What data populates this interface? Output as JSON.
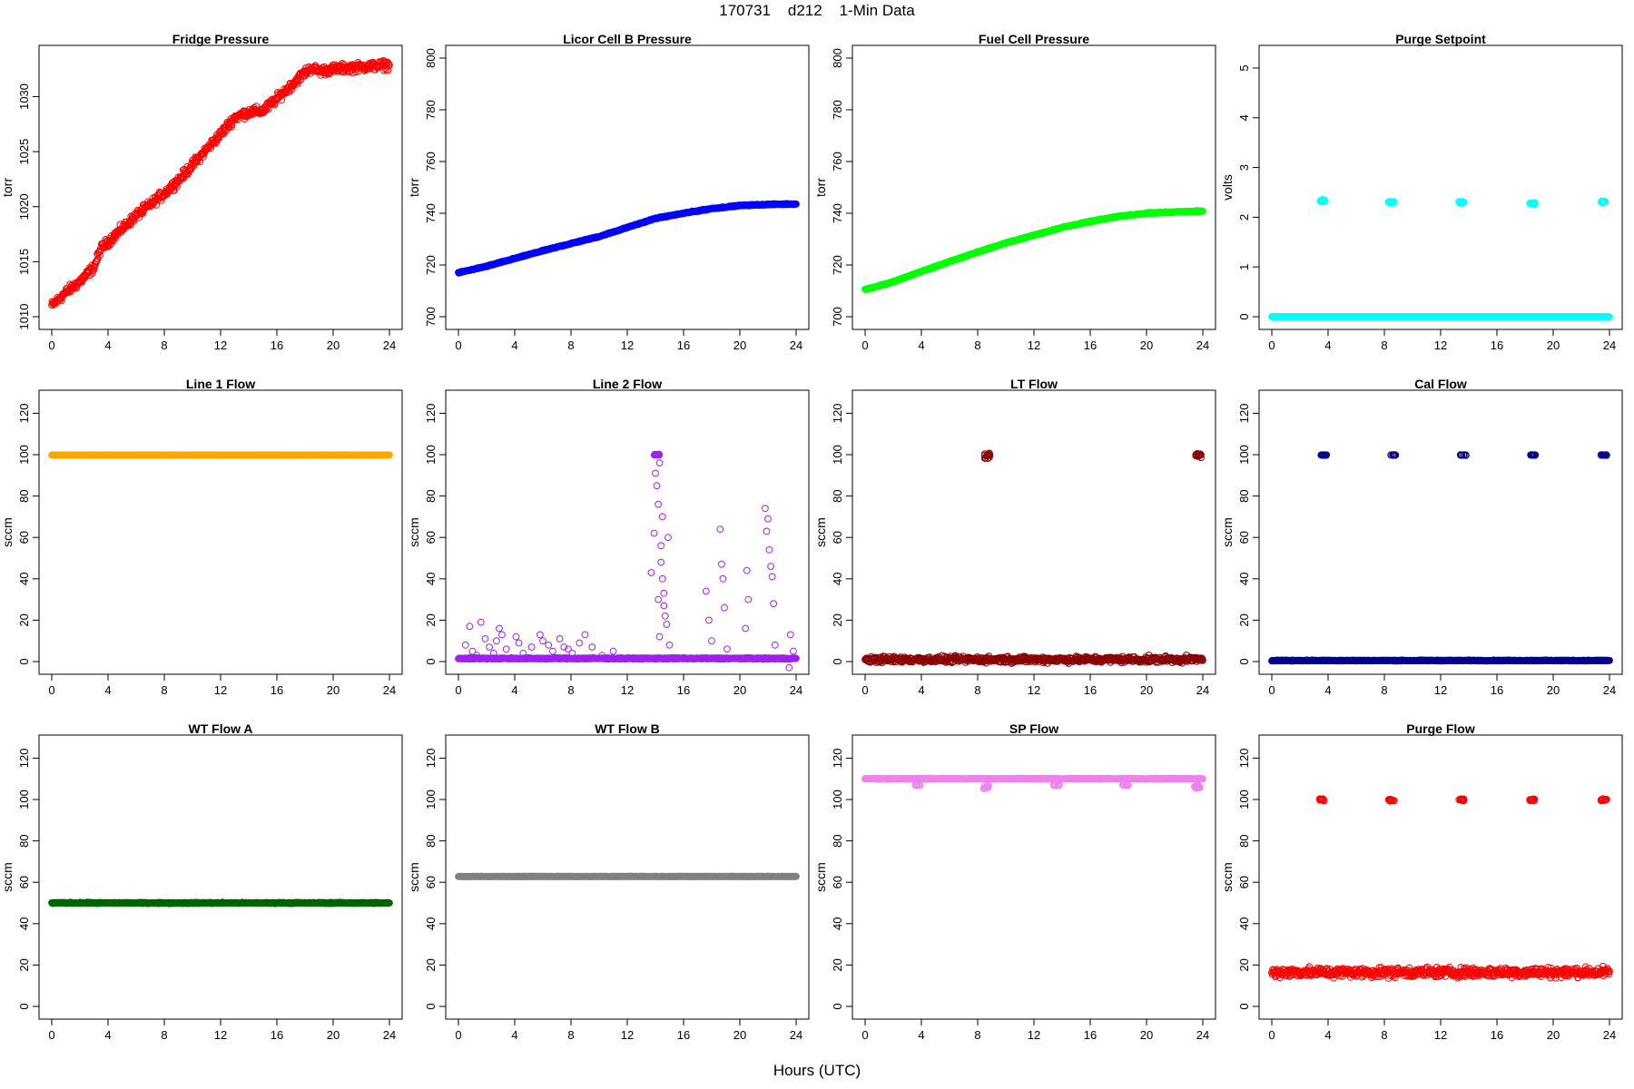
{
  "figure": {
    "title": "170731    d212    1-Min Data",
    "xlabel": "Hours (UTC)"
  },
  "chart_data": [
    {
      "type": "scatter",
      "title": "Fridge Pressure",
      "ylabel": "torr",
      "xlim": [
        0,
        24
      ],
      "ylim": [
        1010,
        1033.5
      ],
      "xticks": [
        0,
        4,
        8,
        12,
        16,
        20,
        24
      ],
      "yticks": [
        1010,
        1015,
        1020,
        1025,
        1030
      ],
      "color": "#ff0000",
      "marker": "open-circle",
      "series": [
        {
          "x": [
            0,
            1,
            2,
            3,
            3.5,
            4,
            5,
            6,
            7,
            8,
            9,
            10,
            11,
            12,
            13,
            14,
            15,
            16,
            17,
            18,
            18.5,
            19,
            20,
            21,
            22,
            23,
            24
          ],
          "values": [
            1011,
            1012.2,
            1013.2,
            1014.5,
            1016.2,
            1016.8,
            1018,
            1019.2,
            1020.2,
            1021.2,
            1022.4,
            1023.8,
            1025.2,
            1026.6,
            1028.1,
            1028.6,
            1028.7,
            1029.8,
            1031.0,
            1032.2,
            1032.6,
            1032.3,
            1032.5,
            1032.6,
            1032.7,
            1032.8,
            1032.9
          ],
          "spread": 0.6
        }
      ]
    },
    {
      "type": "scatter",
      "title": "Licor Cell B Pressure",
      "ylabel": "torr",
      "xlim": [
        0,
        24
      ],
      "ylim": [
        700,
        800
      ],
      "xticks": [
        0,
        4,
        8,
        12,
        16,
        20,
        24
      ],
      "yticks": [
        700,
        720,
        740,
        760,
        780,
        800
      ],
      "color": "#0000ff",
      "marker": "filled-circle",
      "series": [
        {
          "x": [
            0,
            2,
            4,
            6,
            8,
            10,
            12,
            14,
            16,
            18,
            20,
            22,
            24
          ],
          "values": [
            717,
            719.5,
            722.5,
            725.5,
            728.3,
            731,
            734.5,
            738,
            740,
            741.8,
            743,
            743.4,
            743.6
          ],
          "spread": 0.3
        }
      ]
    },
    {
      "type": "scatter",
      "title": "Fuel Cell Pressure",
      "ylabel": "torr",
      "xlim": [
        0,
        24
      ],
      "ylim": [
        700,
        800
      ],
      "xticks": [
        0,
        4,
        8,
        12,
        16,
        20,
        24
      ],
      "yticks": [
        700,
        720,
        740,
        760,
        780,
        800
      ],
      "color": "#00ff00",
      "marker": "filled-circle",
      "series": [
        {
          "x": [
            0,
            2,
            4,
            6,
            8,
            10,
            12,
            14,
            16,
            18,
            20,
            22,
            24
          ],
          "values": [
            710.5,
            713.5,
            717.5,
            721.3,
            725,
            728.5,
            731.5,
            734.5,
            736.8,
            738.8,
            740,
            740.5,
            740.8
          ],
          "spread": 0.3
        }
      ]
    },
    {
      "type": "scatter",
      "title": "Purge Setpoint",
      "ylabel": "volts",
      "xlim": [
        0,
        24
      ],
      "ylim": [
        0,
        5.2
      ],
      "xticks": [
        0,
        4,
        8,
        12,
        16,
        20,
        24
      ],
      "yticks": [
        0,
        1,
        2,
        3,
        4,
        5
      ],
      "color": "#00ffff",
      "marker": "open-circle",
      "baseline": {
        "value": 0,
        "spread": 0
      },
      "clusters": [
        {
          "x": 3.6,
          "y": 2.33,
          "spread": 0.04
        },
        {
          "x": 8.5,
          "y": 2.3,
          "spread": 0.03
        },
        {
          "x": 13.5,
          "y": 2.3,
          "spread": 0.04
        },
        {
          "x": 18.5,
          "y": 2.28,
          "spread": 0.03
        },
        {
          "x": 23.5,
          "y": 2.31,
          "spread": 0.04
        }
      ]
    },
    {
      "type": "scatter",
      "title": "Line 1 Flow",
      "ylabel": "sccm",
      "xlim": [
        0,
        24
      ],
      "ylim": [
        0,
        125
      ],
      "xticks": [
        0,
        4,
        8,
        12,
        16,
        20,
        24
      ],
      "yticks": [
        0,
        20,
        40,
        60,
        80,
        100,
        120
      ],
      "color": "#ffa500",
      "marker": "filled-circle",
      "baseline": {
        "value": 99.8,
        "spread": 0.1
      }
    },
    {
      "type": "scatter",
      "title": "Line 2 Flow",
      "ylabel": "sccm",
      "xlim": [
        0,
        24
      ],
      "ylim": [
        0,
        125
      ],
      "xticks": [
        0,
        4,
        8,
        12,
        16,
        20,
        24
      ],
      "yticks": [
        0,
        20,
        40,
        60,
        80,
        100,
        120
      ],
      "color": "#a020f0",
      "marker": "open-circle",
      "baseline": {
        "value": 1.5,
        "spread": 0.5
      },
      "clusters": [
        {
          "x": 14.1,
          "y": 100,
          "spread": 0.3
        }
      ],
      "points": [
        [
          0.5,
          8
        ],
        [
          0.8,
          17
        ],
        [
          1.0,
          5
        ],
        [
          1.3,
          3
        ],
        [
          1.6,
          19
        ],
        [
          1.9,
          11
        ],
        [
          2.2,
          7
        ],
        [
          2.5,
          4
        ],
        [
          2.7,
          10
        ],
        [
          2.9,
          16
        ],
        [
          3.1,
          13
        ],
        [
          3.4,
          6
        ],
        [
          4.1,
          12
        ],
        [
          4.3,
          9
        ],
        [
          4.6,
          4
        ],
        [
          5.2,
          7
        ],
        [
          5.8,
          13
        ],
        [
          6.0,
          10
        ],
        [
          6.4,
          8
        ],
        [
          6.7,
          5
        ],
        [
          7.2,
          11
        ],
        [
          7.5,
          7
        ],
        [
          7.8,
          6
        ],
        [
          8.1,
          4
        ],
        [
          8.6,
          9
        ],
        [
          9.0,
          13
        ],
        [
          9.5,
          7
        ],
        [
          10.2,
          3
        ],
        [
          11.0,
          5
        ],
        [
          13.7,
          43
        ],
        [
          13.9,
          62
        ],
        [
          14.0,
          91
        ],
        [
          14.1,
          85
        ],
        [
          14.2,
          76
        ],
        [
          14.3,
          96
        ],
        [
          14.4,
          56
        ],
        [
          14.5,
          40
        ],
        [
          14.6,
          33
        ],
        [
          14.7,
          22
        ],
        [
          14.8,
          18
        ],
        [
          14.9,
          60
        ],
        [
          15.0,
          8
        ],
        [
          14.5,
          70
        ],
        [
          14.2,
          30
        ],
        [
          14.4,
          48
        ],
        [
          14.6,
          27
        ],
        [
          14.3,
          12
        ],
        [
          17.6,
          34
        ],
        [
          17.8,
          20
        ],
        [
          18.0,
          10
        ],
        [
          18.6,
          64
        ],
        [
          18.7,
          47
        ],
        [
          18.8,
          40
        ],
        [
          18.9,
          26
        ],
        [
          19.1,
          6
        ],
        [
          20.4,
          16
        ],
        [
          20.5,
          44
        ],
        [
          20.6,
          30
        ],
        [
          21.8,
          74
        ],
        [
          21.9,
          63
        ],
        [
          22.0,
          69
        ],
        [
          22.1,
          54
        ],
        [
          22.2,
          46
        ],
        [
          22.3,
          41
        ],
        [
          22.4,
          28
        ],
        [
          22.5,
          8
        ],
        [
          23.6,
          13
        ],
        [
          23.8,
          5
        ],
        [
          23.5,
          -3
        ]
      ]
    },
    {
      "type": "scatter",
      "title": "LT Flow",
      "ylabel": "sccm",
      "xlim": [
        0,
        24
      ],
      "ylim": [
        0,
        125
      ],
      "xticks": [
        0,
        4,
        8,
        12,
        16,
        20,
        24
      ],
      "yticks": [
        0,
        20,
        40,
        60,
        80,
        100,
        120
      ],
      "color": "#8b0000",
      "marker": "open-circle",
      "baseline": {
        "value": 1,
        "spread": 2.2
      },
      "clusters": [
        {
          "x": 8.7,
          "y": 99.5,
          "spread": 2
        },
        {
          "x": 23.7,
          "y": 99.5,
          "spread": 2
        }
      ]
    },
    {
      "type": "scatter",
      "title": "Cal Flow",
      "ylabel": "sccm",
      "xlim": [
        0,
        24
      ],
      "ylim": [
        0,
        125
      ],
      "xticks": [
        0,
        4,
        8,
        12,
        16,
        20,
        24
      ],
      "yticks": [
        0,
        20,
        40,
        60,
        80,
        100,
        120
      ],
      "color": "#00008b",
      "marker": "open-circle",
      "baseline": {
        "value": 0.5,
        "spread": 0.3
      },
      "clusters": [
        {
          "x": 3.7,
          "y": 99.8,
          "spread": 0.2
        },
        {
          "x": 8.6,
          "y": 99.8,
          "spread": 0.2
        },
        {
          "x": 13.6,
          "y": 99.8,
          "spread": 0.2
        },
        {
          "x": 18.6,
          "y": 99.8,
          "spread": 0.2
        },
        {
          "x": 23.6,
          "y": 99.8,
          "spread": 0.2
        }
      ]
    },
    {
      "type": "scatter",
      "title": "WT Flow A",
      "ylabel": "sccm",
      "xlim": [
        0,
        24
      ],
      "ylim": [
        0,
        125
      ],
      "xticks": [
        0,
        4,
        8,
        12,
        16,
        20,
        24
      ],
      "yticks": [
        0,
        20,
        40,
        60,
        80,
        100,
        120
      ],
      "color": "#006400",
      "marker": "filled-circle",
      "baseline": {
        "value": 50,
        "spread": 0.4
      }
    },
    {
      "type": "scatter",
      "title": "WT Flow B",
      "ylabel": "sccm",
      "xlim": [
        0,
        24
      ],
      "ylim": [
        0,
        125
      ],
      "xticks": [
        0,
        4,
        8,
        12,
        16,
        20,
        24
      ],
      "yticks": [
        0,
        20,
        40,
        60,
        80,
        100,
        120
      ],
      "color": "#808080",
      "marker": "filled-circle",
      "baseline": {
        "value": 62.8,
        "spread": 0.1
      }
    },
    {
      "type": "scatter",
      "title": "SP Flow",
      "ylabel": "sccm",
      "xlim": [
        0,
        24
      ],
      "ylim": [
        0,
        125
      ],
      "xticks": [
        0,
        4,
        8,
        12,
        16,
        20,
        24
      ],
      "yticks": [
        0,
        20,
        40,
        60,
        80,
        100,
        120
      ],
      "color": "#ee82ee",
      "marker": "open-circle",
      "baseline": {
        "value": 110,
        "spread": 0.3
      },
      "clusters": [
        {
          "x": 3.7,
          "y": 107,
          "spread": 0.5
        },
        {
          "x": 8.6,
          "y": 106,
          "spread": 1.2
        },
        {
          "x": 13.6,
          "y": 107,
          "spread": 0.5
        },
        {
          "x": 18.5,
          "y": 107,
          "spread": 0.5
        },
        {
          "x": 23.6,
          "y": 106,
          "spread": 1.2
        }
      ]
    },
    {
      "type": "scatter",
      "title": "Purge Flow",
      "ylabel": "sccm",
      "xlim": [
        0,
        24
      ],
      "ylim": [
        0,
        125
      ],
      "xticks": [
        0,
        4,
        8,
        12,
        16,
        20,
        24
      ],
      "yticks": [
        0,
        20,
        40,
        60,
        80,
        100,
        120
      ],
      "color": "#ff0000",
      "marker": "open-circle",
      "baseline": {
        "value": 16.5,
        "spread": 3.5
      },
      "clusters": [
        {
          "x": 3.6,
          "y": 99.8,
          "spread": 0.8
        },
        {
          "x": 8.5,
          "y": 99.8,
          "spread": 0.8
        },
        {
          "x": 13.5,
          "y": 99.8,
          "spread": 1
        },
        {
          "x": 18.5,
          "y": 99.8,
          "spread": 0.8
        },
        {
          "x": 23.6,
          "y": 99.8,
          "spread": 0.8
        }
      ]
    }
  ]
}
